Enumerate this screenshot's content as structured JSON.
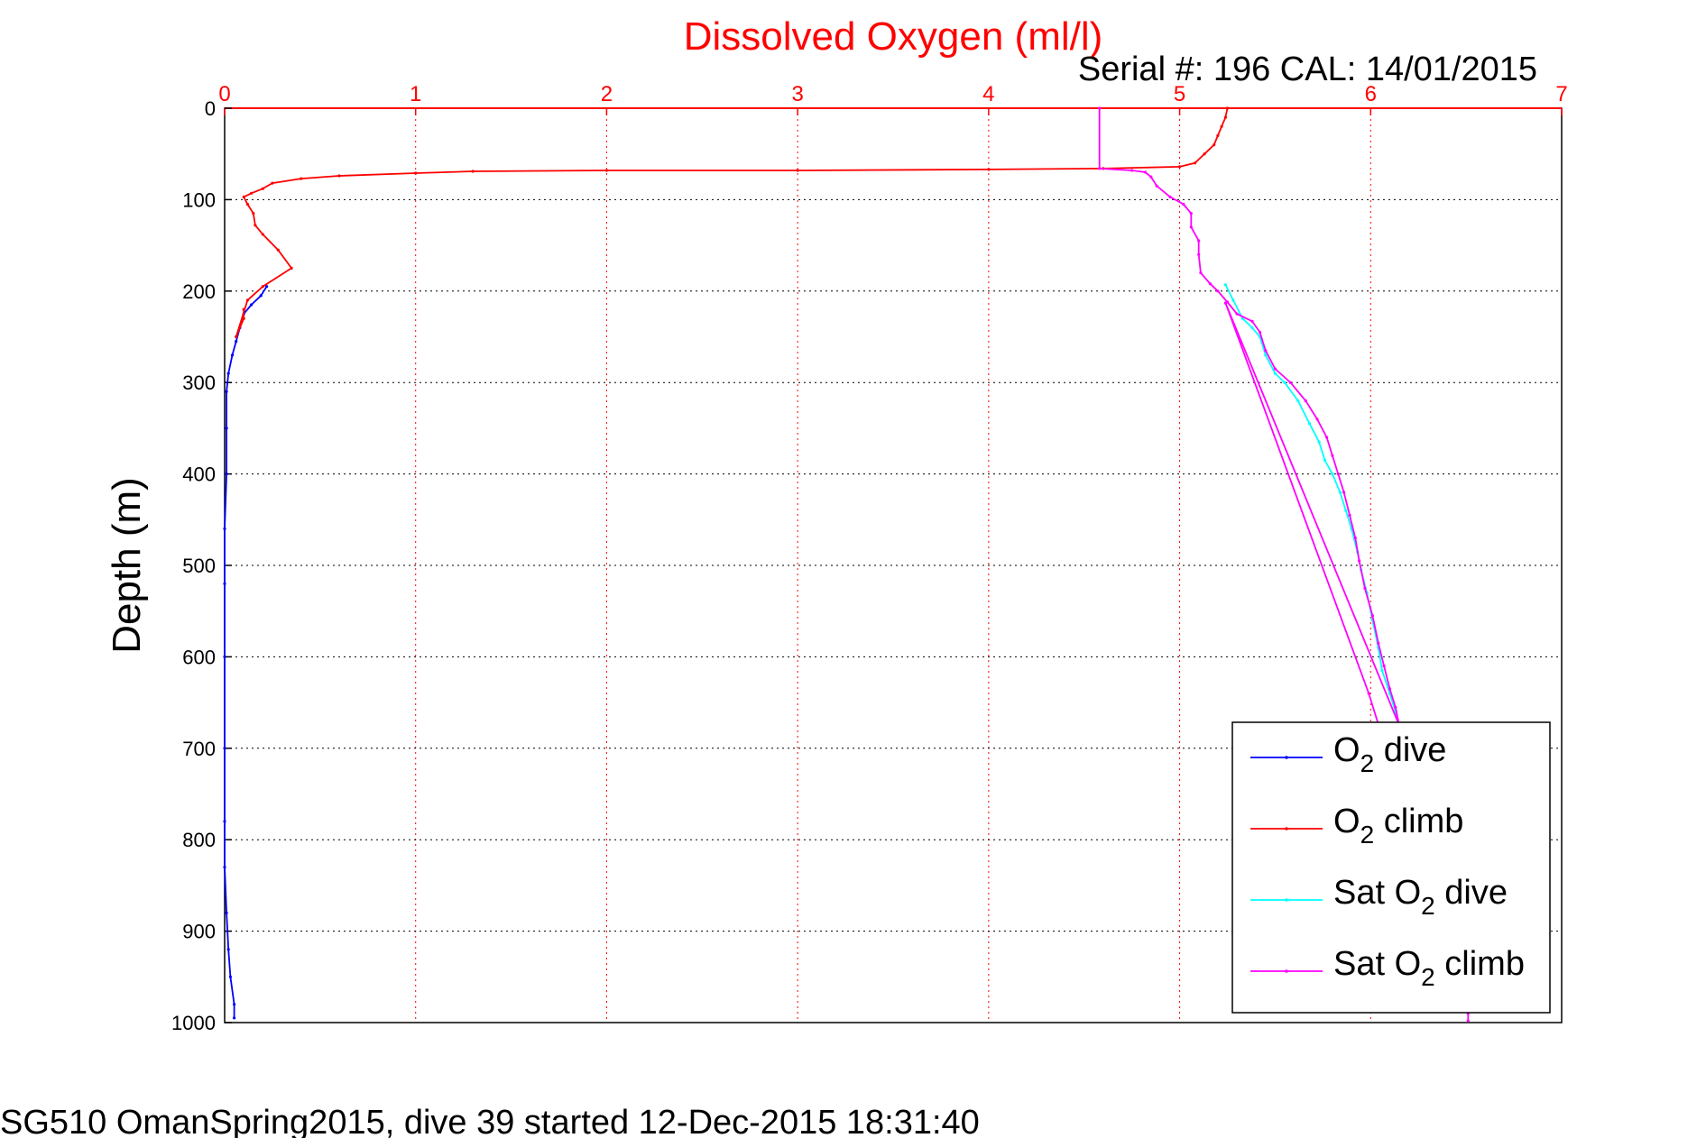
{
  "chart_data": {
    "type": "line",
    "title": "Dissolved Oxygen (ml/l)",
    "subtitle": "Serial #: 196  CAL: 14/01/2015",
    "ylabel": "Depth (m)",
    "footer": "SG510 OmanSpring2015, dive 39 started 12-Dec-2015 18:31:40",
    "xlim": [
      0,
      7
    ],
    "ylim": [
      0,
      1000
    ],
    "y_reversed": true,
    "x_axis_position": "top",
    "x_ticks": [
      "0",
      "1",
      "2",
      "3",
      "4",
      "5",
      "6",
      "7"
    ],
    "y_ticks": [
      "0",
      "100",
      "200",
      "300",
      "400",
      "500",
      "600",
      "700",
      "800",
      "900",
      "1000"
    ],
    "grid": true,
    "legend_position": "bottom-right",
    "colors": {
      "title": "#ff0000",
      "x_axis": "#ff0000",
      "grid_x": "#ff0000",
      "grid_y": "#000000"
    },
    "series": [
      {
        "key": "o2_dive",
        "legend": {
          "base": "O",
          "sub": "2",
          "rest": " dive"
        },
        "color": "#0000ff",
        "points": [
          [
            0.22,
            195
          ],
          [
            0.19,
            205
          ],
          [
            0.14,
            215
          ],
          [
            0.1,
            225
          ],
          [
            0.08,
            240
          ],
          [
            0.06,
            255
          ],
          [
            0.04,
            270
          ],
          [
            0.02,
            290
          ],
          [
            0.01,
            310
          ],
          [
            0.01,
            350
          ],
          [
            0.01,
            400
          ],
          [
            0.0,
            460
          ],
          [
            0.0,
            520
          ],
          [
            0.0,
            600
          ],
          [
            0.0,
            700
          ],
          [
            0.0,
            780
          ],
          [
            0.0,
            830
          ],
          [
            0.01,
            880
          ],
          [
            0.02,
            920
          ],
          [
            0.03,
            950
          ],
          [
            0.05,
            980
          ],
          [
            0.05,
            995
          ]
        ]
      },
      {
        "key": "o2_climb",
        "legend": {
          "base": "O",
          "sub": "2",
          "rest": " climb"
        },
        "color": "#ff0000",
        "points": [
          [
            0.1,
            220
          ],
          [
            0.1,
            230
          ],
          [
            0.06,
            250
          ],
          [
            0.12,
            210
          ],
          [
            0.2,
            195
          ],
          [
            0.35,
            175
          ],
          [
            0.28,
            155
          ],
          [
            0.2,
            138
          ],
          [
            0.16,
            128
          ],
          [
            0.15,
            115
          ],
          [
            0.12,
            105
          ],
          [
            0.1,
            97
          ],
          [
            0.14,
            93
          ],
          [
            0.2,
            88
          ],
          [
            0.25,
            82
          ],
          [
            0.4,
            77
          ],
          [
            0.6,
            74
          ],
          [
            1.0,
            71
          ],
          [
            1.3,
            69
          ],
          [
            2.0,
            68
          ],
          [
            3.0,
            68
          ],
          [
            4.0,
            67
          ],
          [
            4.6,
            66
          ],
          [
            5.0,
            64
          ],
          [
            5.08,
            60
          ],
          [
            5.13,
            50
          ],
          [
            5.18,
            40
          ],
          [
            5.2,
            30
          ],
          [
            5.22,
            20
          ],
          [
            5.24,
            10
          ],
          [
            5.25,
            0
          ]
        ]
      },
      {
        "key": "sat_o2_dive",
        "legend": {
          "base": "Sat O",
          "sub": "2",
          "rest": " dive"
        },
        "color": "#00ffff",
        "points": [
          [
            5.24,
            193
          ],
          [
            5.28,
            210
          ],
          [
            5.33,
            230
          ],
          [
            5.38,
            240
          ],
          [
            5.42,
            250
          ],
          [
            5.45,
            270
          ],
          [
            5.5,
            290
          ],
          [
            5.55,
            300
          ],
          [
            5.62,
            320
          ],
          [
            5.68,
            345
          ],
          [
            5.73,
            365
          ],
          [
            5.76,
            385
          ],
          [
            5.8,
            400
          ],
          [
            5.84,
            420
          ],
          [
            5.87,
            440
          ],
          [
            5.9,
            460
          ],
          [
            5.93,
            485
          ],
          [
            5.95,
            505
          ],
          [
            5.98,
            530
          ],
          [
            6.01,
            560
          ],
          [
            6.04,
            590
          ],
          [
            6.06,
            615
          ],
          [
            6.1,
            640
          ],
          [
            6.13,
            660
          ],
          [
            6.15,
            675
          ]
        ]
      },
      {
        "key": "sat_o2_climb",
        "legend": {
          "base": "Sat O",
          "sub": "2",
          "rest": " climb"
        },
        "color": "#ff00ff",
        "points": [
          [
            4.58,
            0
          ],
          [
            4.58,
            66
          ],
          [
            4.75,
            68
          ],
          [
            4.82,
            70
          ],
          [
            4.85,
            75
          ],
          [
            4.88,
            85
          ],
          [
            4.95,
            97
          ],
          [
            5.02,
            105
          ],
          [
            5.06,
            115
          ],
          [
            5.06,
            130
          ],
          [
            5.1,
            145
          ],
          [
            5.1,
            160
          ],
          [
            5.11,
            180
          ],
          [
            5.16,
            192
          ],
          [
            5.2,
            200
          ],
          [
            5.25,
            212
          ],
          [
            5.3,
            225
          ],
          [
            5.38,
            233
          ],
          [
            5.42,
            245
          ],
          [
            5.45,
            265
          ],
          [
            5.5,
            285
          ],
          [
            5.58,
            300
          ],
          [
            5.66,
            320
          ],
          [
            5.72,
            340
          ],
          [
            5.77,
            360
          ],
          [
            5.8,
            380
          ],
          [
            5.83,
            400
          ],
          [
            5.86,
            420
          ],
          [
            5.89,
            445
          ],
          [
            5.92,
            470
          ],
          [
            5.94,
            495
          ],
          [
            5.97,
            525
          ],
          [
            6.01,
            555
          ],
          [
            6.04,
            585
          ],
          [
            6.07,
            610
          ],
          [
            6.1,
            635
          ],
          [
            6.13,
            655
          ],
          [
            6.15,
            675
          ],
          [
            5.24,
            213
          ],
          [
            5.99,
            640
          ],
          [
            6.51,
            990
          ],
          [
            6.51,
            998
          ]
        ]
      }
    ]
  }
}
